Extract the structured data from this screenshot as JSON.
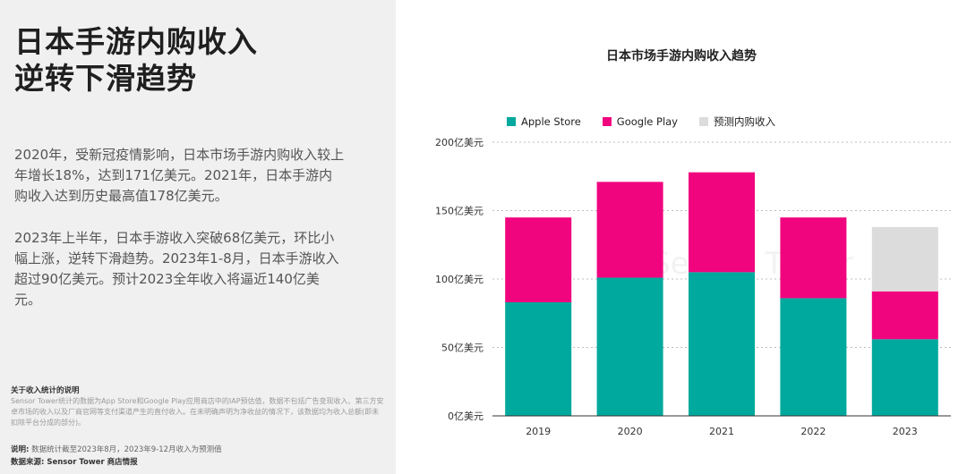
{
  "left": {
    "headline_line1": "日本手游内购收入",
    "headline_line2": "逆转下滑趋势",
    "paragraph1": "2020年，受新冠疫情影响，日本市场手游内购收入较上年增长18%，达到171亿美元。2021年，日本手游内购收入达到历史最高值178亿美元。",
    "paragraph2": "2023年上半年，日本手游收入突破68亿美元，环比小幅上涨，逆转下滑趋势。2023年1-8月，日本手游收入超过90亿美元。预计2023全年收入将逼近140亿美元。",
    "note_title": "关于收入统计的说明",
    "note_body": "Sensor Tower统计的数据为App Store和Google Play应用商店中的IAP预估值，数据不包括广告变现收入、第三方安卓市场的收入以及厂商官网等支付渠道产生的直付收入。在未明确声明为净收益的情况下，该数据均为收入总额(即未扣除平台分成的部分)。",
    "explain_label": "说明:",
    "explain_text": "数据统计截至2023年8月，2023年9-12月收入为预测值",
    "source": "数据来源: Sensor Tower 商店情报"
  },
  "watermark": "Sensor Tower",
  "colors": {
    "apple": "#00a99d",
    "google": "#f0057f",
    "forecast": "#dcdcdc"
  },
  "chart_data": {
    "type": "bar",
    "stacked": true,
    "title": "日本市场手游内购收入趋势",
    "categories": [
      "2019",
      "2020",
      "2021",
      "2022",
      "2023"
    ],
    "series": [
      {
        "name": "Apple Store",
        "values": [
          83,
          101,
          105,
          86,
          56
        ]
      },
      {
        "name": "Google Play",
        "values": [
          62,
          70,
          73,
          59,
          35
        ]
      },
      {
        "name": "预测内购收入",
        "values": [
          0,
          0,
          0,
          0,
          47
        ]
      }
    ],
    "ylim": [
      0,
      200
    ],
    "yticks": [
      0,
      50,
      100,
      150,
      200
    ],
    "ytick_labels": [
      "0亿美元",
      "50亿美元",
      "100亿美元",
      "150亿美元",
      "200亿美元"
    ],
    "legend_position": "top-left",
    "grid": true
  }
}
